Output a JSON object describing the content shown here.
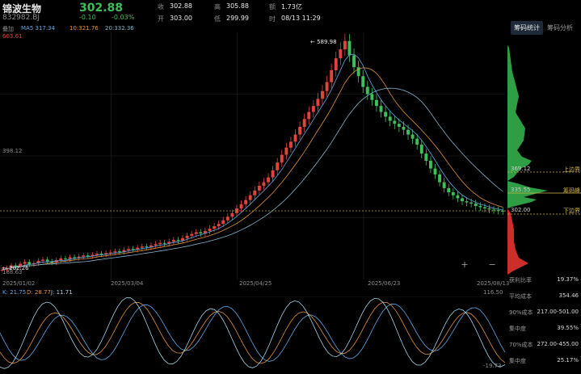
{
  "header": {
    "name": "锦波生物",
    "code": "832982.BJ",
    "price": "302.88",
    "change": "-0.10",
    "change_pct": "-0.03%",
    "close_label": "收",
    "close_value": "302.88",
    "high_label": "高",
    "high_value": "305.88",
    "volume_label": "额",
    "volume_value": "1.73亿",
    "open_label": "开",
    "open_value": "303.00",
    "low_label": "低",
    "low_value": "299.99",
    "time_label": "时",
    "time_value": "08/13 11:29"
  },
  "ma_bar": {
    "overlay_label": "叠加",
    "ma5": "MA5 317.34",
    "ma10": "10:321.76",
    "ma20": "20:332.36"
  },
  "price_axis": {
    "top": "603.61",
    "mid": "398.12",
    "bottom": "188.63"
  },
  "annotations": {
    "max_label": "589.98",
    "min_label": "202.26"
  },
  "dates": [
    "2025/01/02",
    "2025/03/04",
    "2025/04/25",
    "2025/06/23",
    "2025/08/13"
  ],
  "tabs": {
    "chip_stats": "筹码统计",
    "chip_analysis": "筹码分析"
  },
  "chip_labels": {
    "upper": "上边界",
    "peak": "筹码峰",
    "lower": "下边界",
    "upper_price": "369.12",
    "peak_price": "335.55",
    "lower_price": "302.00"
  },
  "kdj": {
    "k": "K: 21.75",
    "d": "D: 28.77",
    "j": "J: 11.71",
    "top": "116.50",
    "bottom": "-19.73"
  },
  "stats": [
    {
      "label": "获利比率",
      "value": "19.37%"
    },
    {
      "label": "平均成本",
      "value": "354.46"
    },
    {
      "label": "90%成本",
      "value": "217.00-501.00"
    },
    {
      "label": "集中度",
      "value": "39.55%"
    },
    {
      "label": "70%成本",
      "value": "272.00-455.00"
    },
    {
      "label": "集中度",
      "value": "25.17%"
    }
  ],
  "chart_data": {
    "type": "candlestick",
    "series": [
      {
        "name": "MA5",
        "values": [
          317.34
        ]
      },
      {
        "name": "10",
        "values": [
          321.76
        ]
      },
      {
        "name": "20",
        "values": [
          332.36
        ]
      }
    ],
    "x_ticks": [
      "2025/01/02",
      "2025/03/04",
      "2025/04/25",
      "2025/06/23",
      "2025/08/13"
    ],
    "ylim": [
      188.63,
      603.61
    ],
    "closes": [
      205,
      208,
      212,
      210,
      215,
      218,
      214,
      216,
      220,
      222,
      219,
      217,
      221,
      224,
      223,
      226,
      225,
      227,
      229,
      228,
      230,
      232,
      231,
      233,
      234,
      236,
      235,
      238,
      240,
      239,
      242,
      244,
      243,
      246,
      248,
      250,
      249,
      252,
      255,
      254,
      258,
      262,
      265,
      268,
      266,
      270,
      274,
      278,
      282,
      288,
      294,
      300,
      308,
      315,
      322,
      330,
      338,
      346,
      352,
      360,
      372,
      385,
      398,
      410,
      420,
      432,
      445,
      458,
      470,
      480,
      492,
      505,
      520,
      540,
      560,
      575,
      589,
      565,
      545,
      530,
      512,
      500,
      490,
      480,
      470,
      462,
      455,
      450,
      445,
      440,
      432,
      425,
      415,
      400,
      388,
      375,
      365,
      352,
      342,
      335,
      330,
      325,
      320,
      318,
      316,
      312,
      310,
      308,
      306,
      305,
      304,
      303
    ]
  },
  "colors": {
    "up": "#e0443c",
    "down": "#3fbf5a",
    "ma5": "#5ba8e6",
    "ma10": "#e0913a",
    "ma20": "#7fb4c9"
  }
}
